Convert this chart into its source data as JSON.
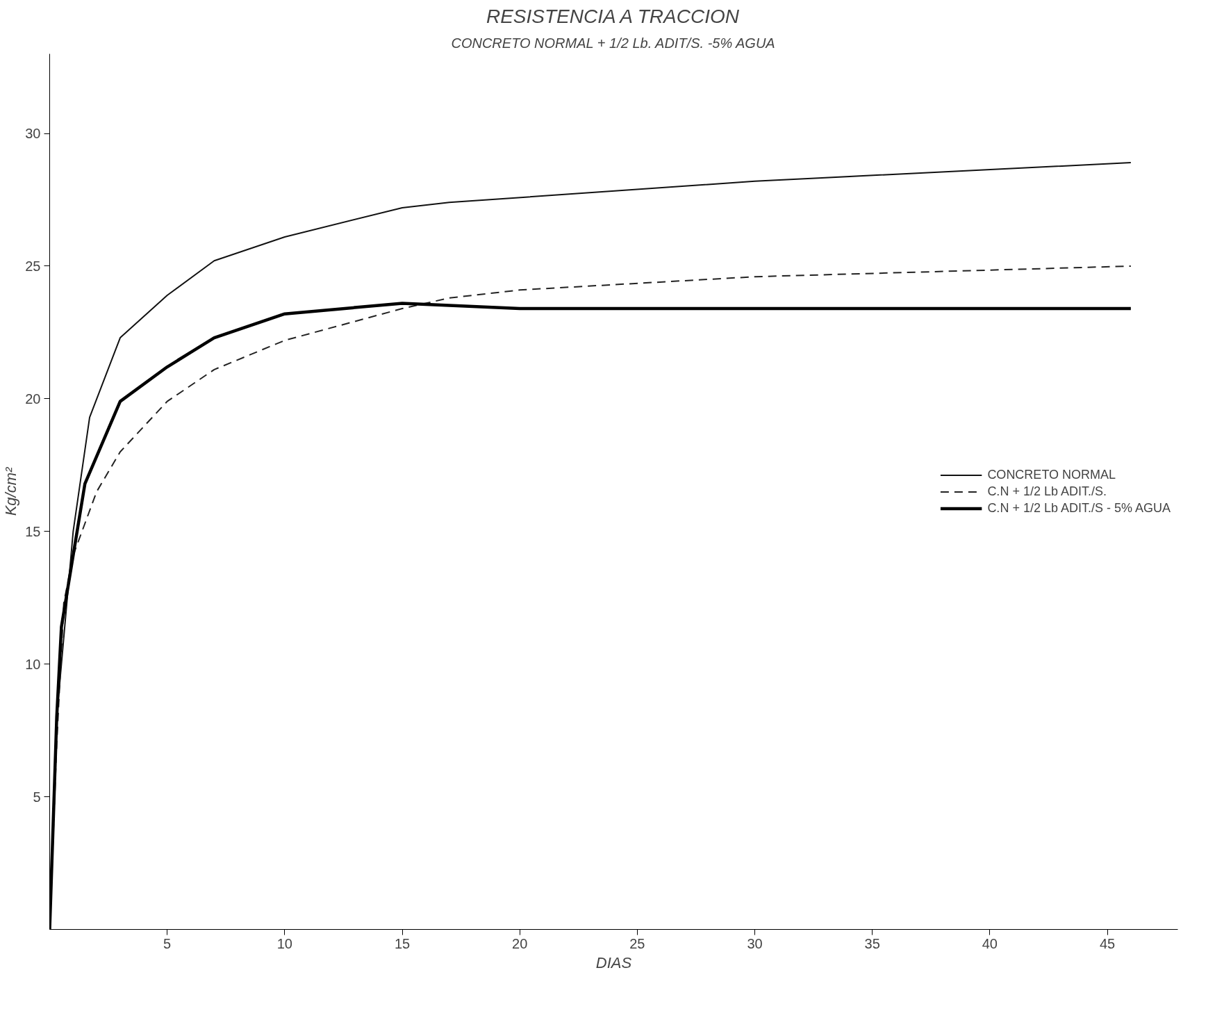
{
  "chart_data": {
    "type": "line",
    "title": "RESISTENCIA A TRACCION",
    "subtitle": "CONCRETO NORMAL + 1/2 Lb. ADIT/S. -5% AGUA",
    "xlabel": "DIAS",
    "ylabel": "Kg/cm²",
    "xlim": [
      0,
      48
    ],
    "ylim": [
      0,
      33
    ],
    "xticks": [
      5,
      10,
      15,
      20,
      25,
      30,
      35,
      40,
      45
    ],
    "yticks": [
      5,
      10,
      15,
      20,
      25,
      30
    ],
    "grid": false,
    "legend": "right",
    "marker": "none",
    "series": [
      {
        "name": "CONCRETO NORMAL",
        "color": "#111111",
        "line_style": "solid",
        "x": [
          0,
          0.3,
          1,
          1.7,
          3,
          5,
          7,
          10,
          15,
          17,
          30,
          46
        ],
        "values": [
          0,
          8,
          15,
          19.3,
          22.3,
          23.9,
          25.2,
          26.1,
          27.2,
          27.4,
          28.2,
          28.9
        ]
      },
      {
        "name": "C.N + 1/2 Lb ADIT./S.",
        "color": "#222222",
        "line_style": "dashed",
        "x": [
          0,
          0.3,
          0.6,
          1,
          2,
          3,
          5,
          7,
          10,
          15,
          17,
          20,
          30,
          46
        ],
        "values": [
          0,
          7,
          12.3,
          14.1,
          16.5,
          18,
          19.9,
          21.1,
          22.2,
          23.4,
          23.8,
          24.1,
          24.6,
          25.0
        ]
      },
      {
        "name": "C.N + 1/2 Lb ADIT./S - 5% AGUA",
        "color": "#000000",
        "line_style": "solid",
        "x": [
          0,
          0.3,
          0.5,
          1.5,
          3,
          5,
          7,
          10,
          15,
          20,
          46
        ],
        "values": [
          0,
          8,
          11.4,
          16.8,
          19.9,
          21.2,
          22.3,
          23.2,
          23.6,
          23.4,
          23.4
        ]
      }
    ]
  }
}
